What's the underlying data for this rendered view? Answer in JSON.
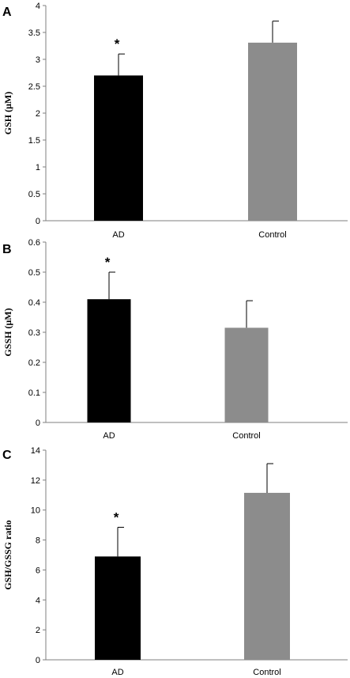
{
  "chart_data": [
    {
      "type": "bar",
      "panel_label": "A",
      "categories": [
        "AD",
        "Control"
      ],
      "values": [
        2.7,
        3.31
      ],
      "errors": [
        0.4,
        0.4
      ],
      "annotations": [
        "*",
        ""
      ],
      "colors": [
        "#000000",
        "#8c8c8c"
      ],
      "ylabel": "GSH (μM)",
      "ylim": [
        0,
        4
      ],
      "yticks": [
        "0",
        "0.5",
        "1",
        "1.5",
        "2",
        "2.5",
        "3",
        "3.5",
        "4"
      ],
      "grid": false
    },
    {
      "type": "bar",
      "panel_label": "B",
      "categories": [
        "AD",
        "Control"
      ],
      "values": [
        0.41,
        0.315
      ],
      "errors": [
        0.09,
        0.09
      ],
      "annotations": [
        "*",
        ""
      ],
      "colors": [
        "#000000",
        "#8c8c8c"
      ],
      "ylabel": "GSSH (μM)",
      "ylim": [
        0,
        0.6
      ],
      "yticks": [
        "0",
        "0.1",
        "0.2",
        "0.3",
        "0.4",
        "0.5",
        "0.6"
      ],
      "grid": false
    },
    {
      "type": "bar",
      "panel_label": "C",
      "categories": [
        "AD",
        "Control"
      ],
      "values": [
        6.9,
        11.15
      ],
      "errors": [
        1.95,
        1.95
      ],
      "annotations": [
        "*",
        ""
      ],
      "colors": [
        "#000000",
        "#8c8c8c"
      ],
      "ylabel": "GSH/GSSG ratio",
      "ylim": [
        0,
        14
      ],
      "yticks": [
        "0",
        "2",
        "4",
        "6",
        "8",
        "10",
        "12",
        "14"
      ],
      "grid": false
    }
  ]
}
